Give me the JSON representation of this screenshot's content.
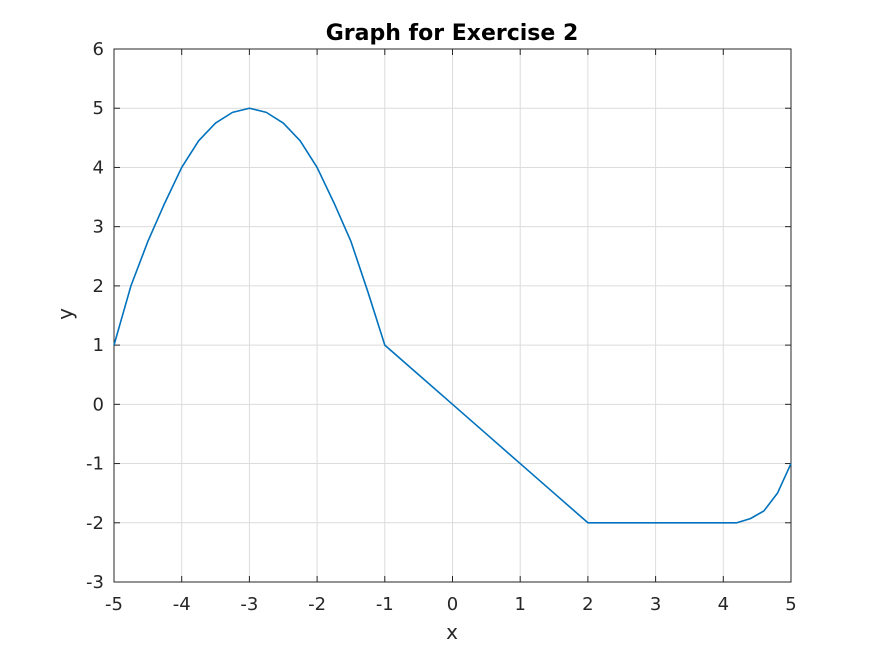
{
  "chart_data": {
    "type": "line",
    "title": "Graph for Exercise 2",
    "xlabel": "x",
    "ylabel": "y",
    "xlim": [
      -5,
      5
    ],
    "ylim": [
      -3,
      6
    ],
    "xticks": [
      "-5",
      "-4",
      "-3",
      "-2",
      "-1",
      "0",
      "1",
      "2",
      "3",
      "4",
      "5"
    ],
    "yticks": [
      "-3",
      "-2",
      "-1",
      "0",
      "1",
      "2",
      "3",
      "4",
      "5",
      "6"
    ],
    "grid": true,
    "series": [
      {
        "color": "#0072BD",
        "x": [
          -5,
          -4.75,
          -4.5,
          -4.25,
          -4,
          -3.75,
          -3.5,
          -3.25,
          -3,
          -2.75,
          -2.5,
          -2.25,
          -2,
          -1.75,
          -1.5,
          -1.25,
          -1,
          -0.5,
          0,
          0.5,
          1,
          1.5,
          2,
          2.5,
          3,
          3.5,
          4,
          4.2,
          4.4,
          4.6,
          4.8,
          5
        ],
        "y": [
          1,
          2.0,
          2.75,
          3.4,
          4,
          4.45,
          4.75,
          4.93,
          5,
          4.93,
          4.75,
          4.45,
          4,
          3.4,
          2.75,
          1.9,
          1,
          0.5,
          0,
          -0.5,
          -1,
          -1.5,
          -2,
          -2,
          -2,
          -2,
          -2,
          -2,
          -1.93,
          -1.8,
          -1.5,
          -1
        ]
      }
    ]
  }
}
